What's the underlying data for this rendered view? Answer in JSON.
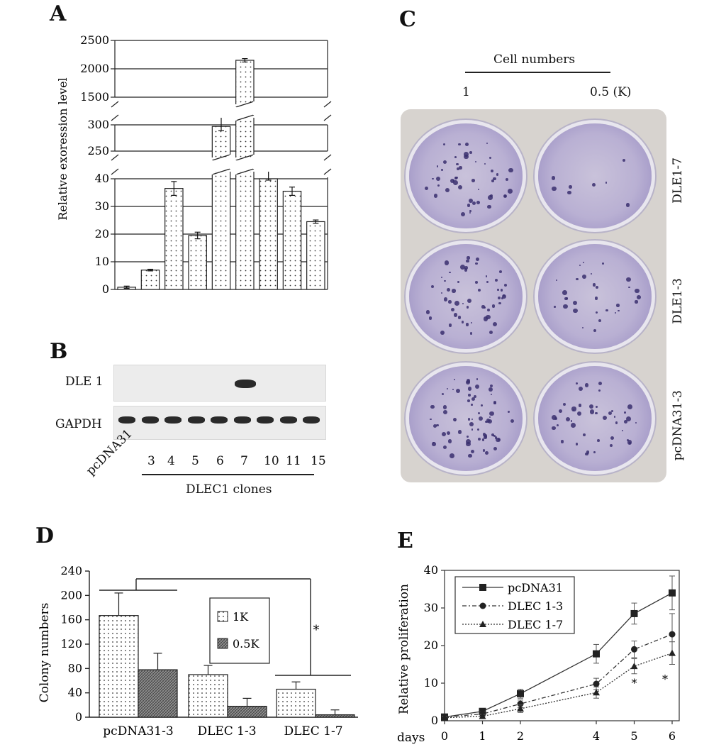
{
  "panels": {
    "a": "A",
    "b": "B",
    "c": "C",
    "d": "D",
    "e": "E"
  },
  "chart_data": [
    {
      "panel": "A",
      "type": "bar",
      "ylabel": "Relative exoression level",
      "categories": [
        "pcDNA31",
        "3",
        "4",
        "5",
        "6",
        "7",
        "10",
        "11",
        "15"
      ],
      "values": [
        0.8,
        7,
        36.5,
        19.5,
        297,
        2150,
        40,
        35.5,
        24.5
      ],
      "errors": [
        0.4,
        0.3,
        2.5,
        1.2,
        8,
        30,
        0.5,
        1.5,
        0.6
      ],
      "yticks": [
        "0",
        "10",
        "20",
        "30",
        "40",
        "250",
        "300",
        "1500",
        "2000",
        "2500"
      ],
      "broken_axis": [
        [
          0,
          45
        ],
        [
          240,
          320
        ],
        [
          1450,
          2550
        ]
      ]
    },
    {
      "panel": "D",
      "type": "bar",
      "ylabel": "Colony numbers",
      "categories": [
        "pcDNA31-3",
        "DLEC 1-3",
        "DLEC 1-7"
      ],
      "series": [
        {
          "name": "1K",
          "values": [
            167,
            70,
            46
          ],
          "errors": [
            37,
            15,
            12
          ]
        },
        {
          "name": "0.5K",
          "values": [
            78,
            18,
            4
          ],
          "errors": [
            27,
            13,
            8
          ]
        }
      ],
      "ylim": [
        0,
        240
      ],
      "yticks": [
        "0",
        "40",
        "80",
        "120",
        "160",
        "200",
        "240"
      ],
      "annotation": "*"
    },
    {
      "panel": "E",
      "type": "line",
      "ylabel": "Relative proliferation",
      "xlabel": "days",
      "x": [
        0,
        1,
        2,
        4,
        5,
        6
      ],
      "xticks": [
        "0",
        "1",
        "2",
        "4",
        "5",
        "6"
      ],
      "series": [
        {
          "name": "pcDNA31",
          "values": [
            1,
            2.5,
            7.2,
            17.8,
            28.5,
            34
          ],
          "errors": [
            0.5,
            0.8,
            1.2,
            2.5,
            2.8,
            4.5
          ]
        },
        {
          "name": "DLEC 1-3",
          "values": [
            1,
            1.8,
            4.5,
            9.8,
            19,
            23
          ],
          "errors": [
            0.4,
            0.6,
            1,
            1.5,
            2.2,
            5.5
          ]
        },
        {
          "name": "DLEC 1-7",
          "values": [
            0.8,
            1.2,
            3.2,
            7.5,
            14.5,
            18
          ],
          "errors": [
            0.3,
            0.5,
            1,
            1.5,
            2,
            3
          ]
        }
      ],
      "ylim": [
        0,
        40
      ],
      "yticks": [
        "0",
        "10",
        "20",
        "30",
        "40"
      ],
      "annotations": [
        "*",
        "*"
      ]
    }
  ],
  "blot": {
    "row1_label": "DLE 1",
    "row2_label": "GAPDH",
    "lane_labels": [
      "pcDNA31",
      "3",
      "4",
      "5",
      "6",
      "7",
      "10",
      "11",
      "15"
    ],
    "group_label": "DLEC1 clones"
  },
  "plate": {
    "header": "Cell numbers",
    "col_left": "1",
    "col_right": "0.5 (K)",
    "row_labels": [
      "DLE1-7",
      "DLE1-3",
      "pcDNA31-3"
    ]
  }
}
